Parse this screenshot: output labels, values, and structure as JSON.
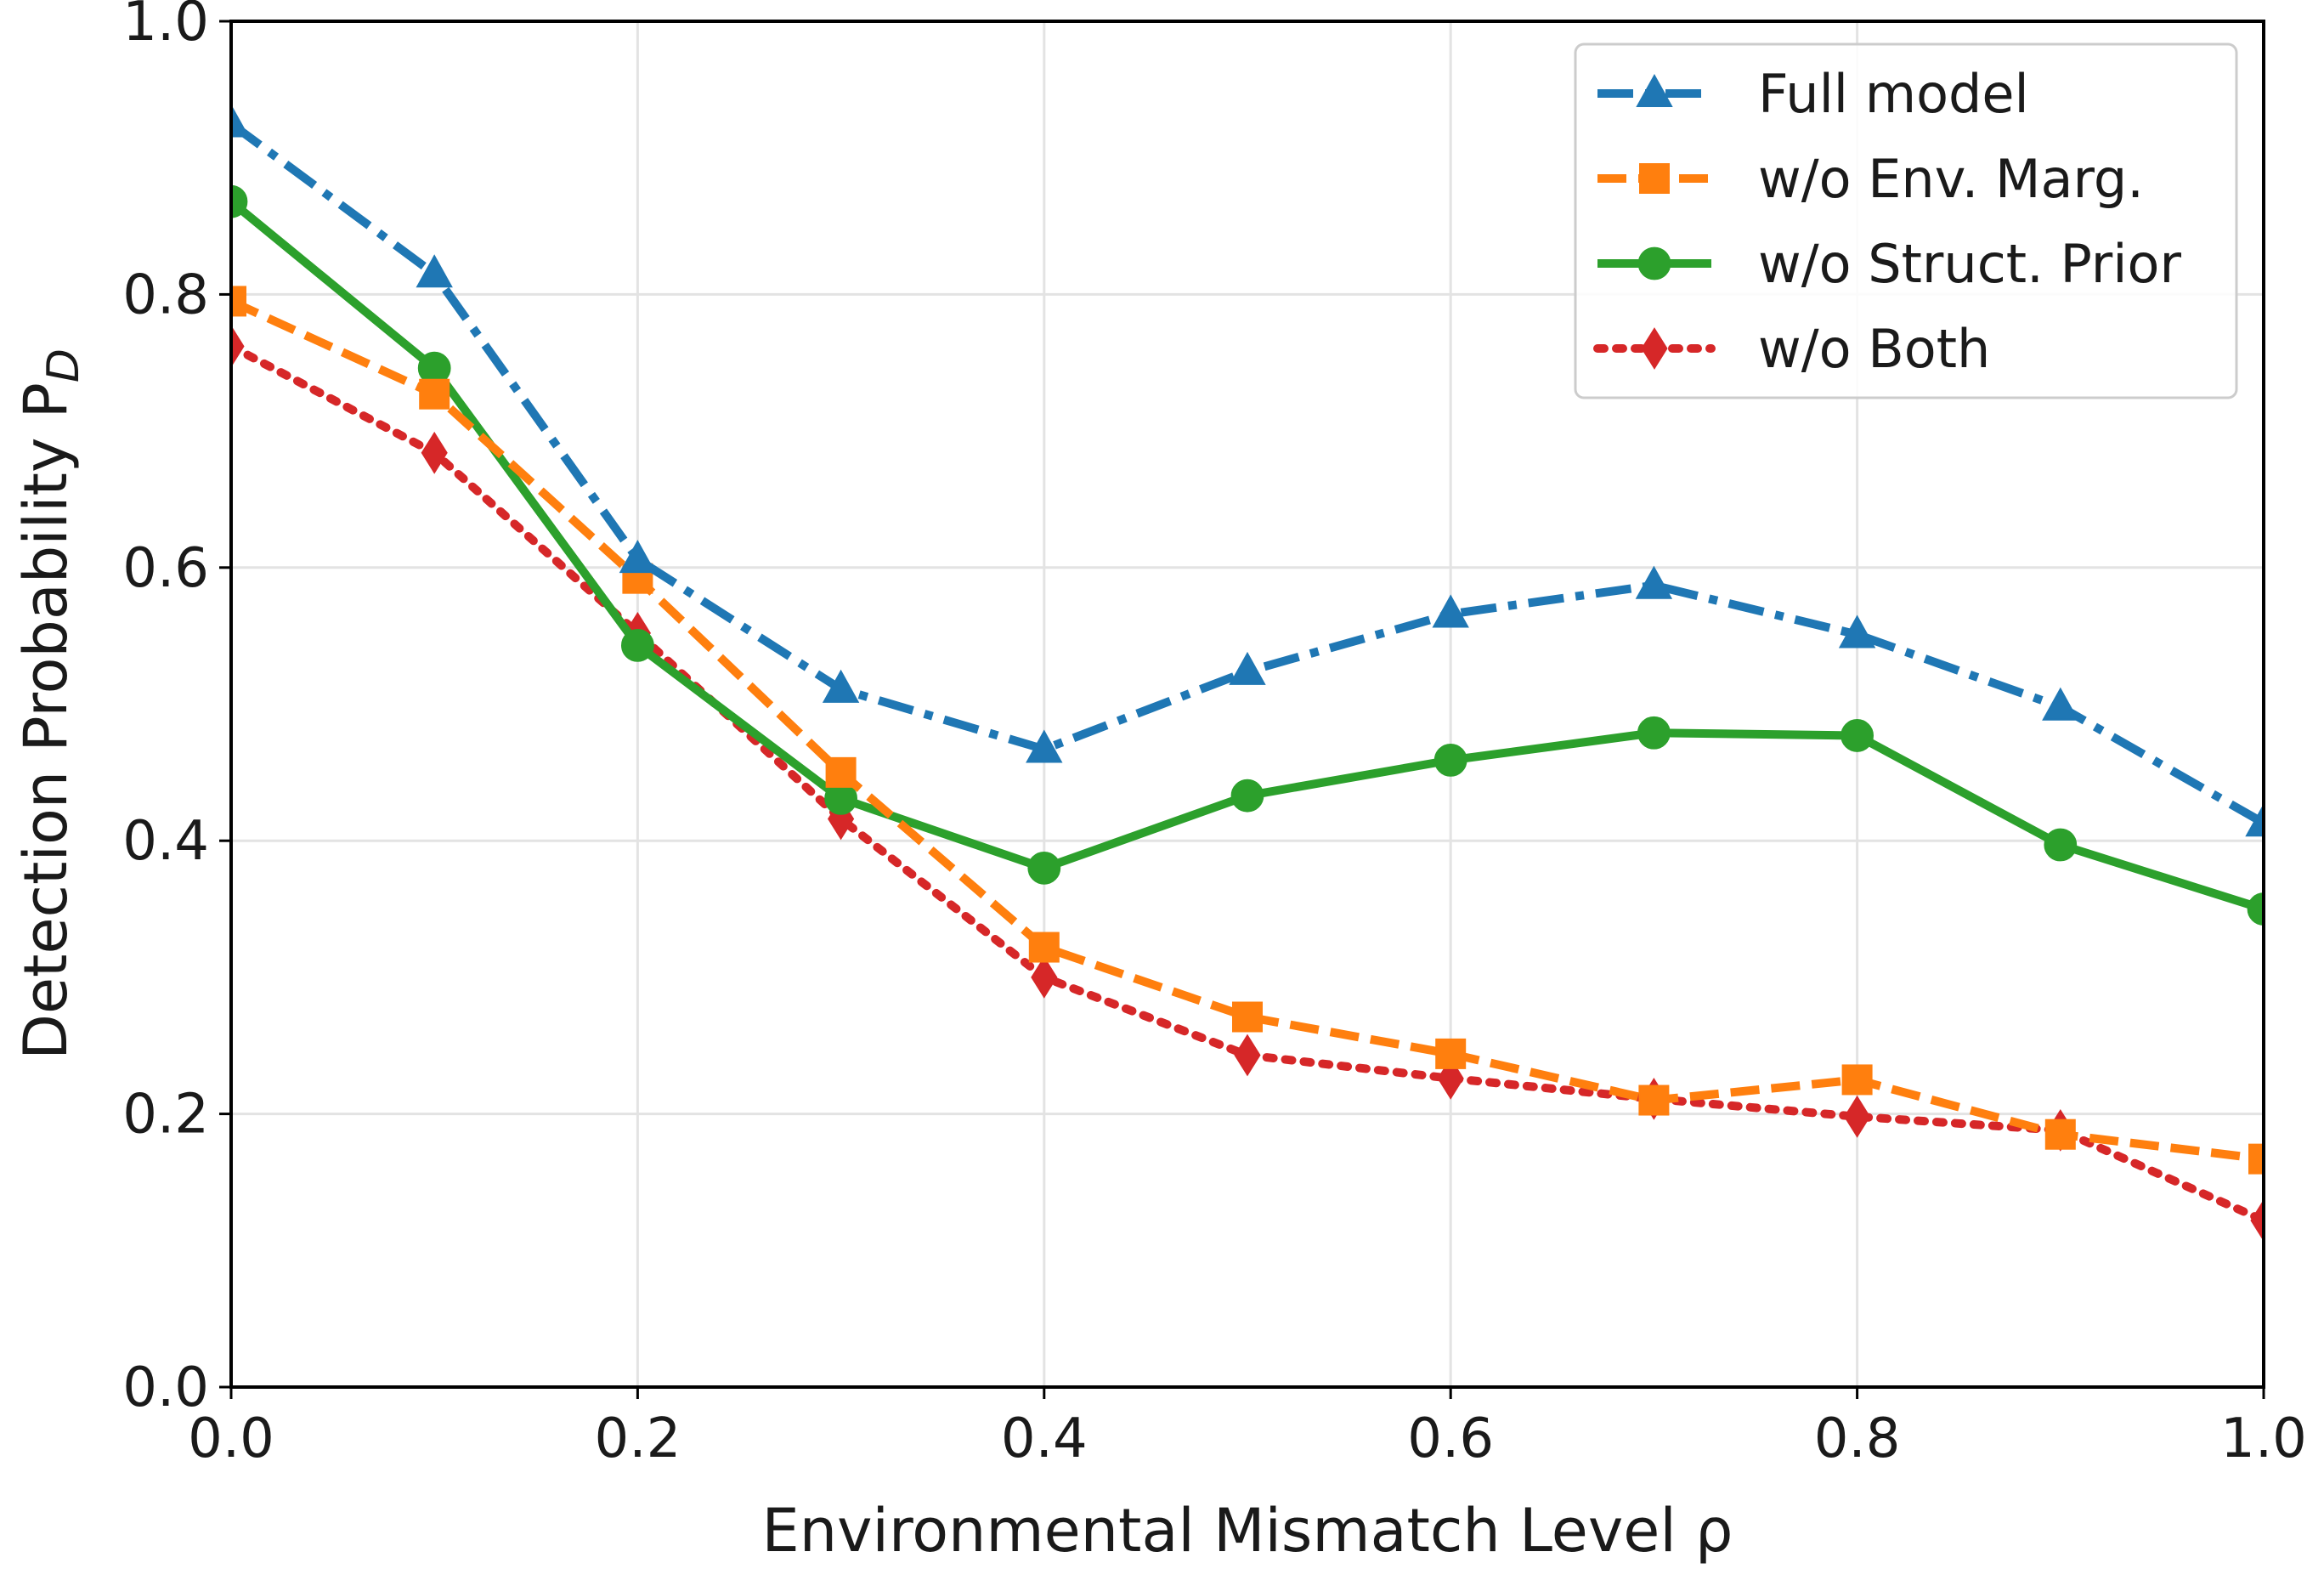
{
  "chart_data": {
    "type": "line",
    "xlabel": "Environmental Mismatch Level ρ",
    "ylabel": "Detection Probability P",
    "ylabel_subscript": "D",
    "xlim": [
      0.0,
      1.0
    ],
    "ylim": [
      0.0,
      1.0
    ],
    "x_ticks": [
      "0.0",
      "0.2",
      "0.4",
      "0.6",
      "0.8",
      "1.0"
    ],
    "y_ticks": [
      "0.0",
      "0.2",
      "0.4",
      "0.6",
      "0.8",
      "1.0"
    ],
    "grid": true,
    "legend_position": "top-right",
    "x": [
      0.0,
      0.1,
      0.2,
      0.3,
      0.4,
      0.5,
      0.6,
      0.7,
      0.8,
      0.9,
      1.0
    ],
    "series": [
      {
        "name": "Full model",
        "color": "#1f77b4",
        "marker": "triangle",
        "linestyle": "dashdot",
        "values": [
          0.925,
          0.815,
          0.606,
          0.511,
          0.467,
          0.524,
          0.566,
          0.587,
          0.551,
          0.498,
          0.413
        ]
      },
      {
        "name": "w/o Env. Marg.",
        "color": "#ff7f0e",
        "marker": "square",
        "linestyle": "dashed",
        "values": [
          0.795,
          0.727,
          0.592,
          0.45,
          0.322,
          0.271,
          0.244,
          0.21,
          0.225,
          0.185,
          0.167
        ]
      },
      {
        "name": "w/o Struct. Prior",
        "color": "#2ca02c",
        "marker": "circle",
        "linestyle": "solid",
        "values": [
          0.868,
          0.746,
          0.543,
          0.431,
          0.38,
          0.433,
          0.459,
          0.479,
          0.477,
          0.397,
          0.35
        ]
      },
      {
        "name": "w/o Both",
        "color": "#d62728",
        "marker": "diamond",
        "linestyle": "dotted",
        "values": [
          0.762,
          0.684,
          0.552,
          0.416,
          0.3,
          0.243,
          0.226,
          0.211,
          0.198,
          0.188,
          0.122
        ]
      }
    ]
  }
}
